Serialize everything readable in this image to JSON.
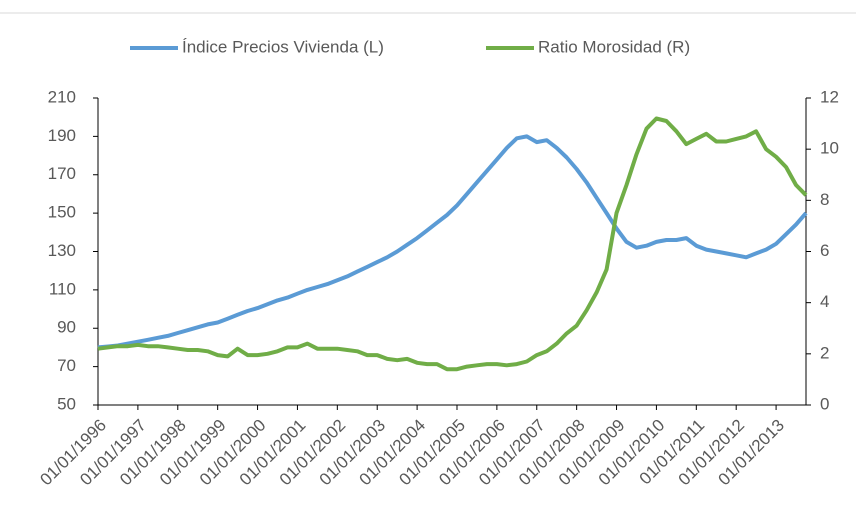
{
  "chart_data": {
    "type": "line",
    "categories": [
      "01/01/1996",
      null,
      null,
      null,
      "01/01/1997",
      null,
      null,
      null,
      "01/01/1998",
      null,
      null,
      null,
      "01/01/1999",
      null,
      null,
      null,
      "01/01/2000",
      null,
      null,
      null,
      "01/01/2001",
      null,
      null,
      null,
      "01/01/2002",
      null,
      null,
      null,
      "01/01/2003",
      null,
      null,
      null,
      "01/01/2004",
      null,
      null,
      null,
      "01/01/2005",
      null,
      null,
      null,
      "01/01/2006",
      null,
      null,
      null,
      "01/01/2007",
      null,
      null,
      null,
      "01/01/2008",
      null,
      null,
      null,
      "01/01/2009",
      null,
      null,
      null,
      "01/01/2010",
      null,
      null,
      null,
      "01/01/2011",
      null,
      null,
      null,
      "01/01/2012",
      null,
      null,
      null,
      "01/01/2013",
      null,
      null,
      null
    ],
    "series": [
      {
        "name": "Índice Precios Vivienda (L)",
        "color": "#5b9bd5",
        "axis": "y",
        "values": [
          80,
          80.5,
          81,
          82,
          83,
          84,
          85,
          86,
          87.5,
          89,
          90.5,
          92,
          93,
          95,
          97,
          99,
          100.5,
          102.5,
          104.5,
          106,
          108,
          110,
          111.5,
          113,
          115,
          117,
          119.5,
          122,
          124.5,
          127,
          130,
          133.5,
          137,
          141,
          145,
          149,
          154,
          160,
          166,
          172,
          178,
          184,
          189,
          190,
          187,
          188,
          184,
          179,
          173,
          166,
          158,
          150,
          142,
          135,
          132,
          133,
          135,
          136,
          136,
          137,
          133,
          131,
          130,
          129,
          128,
          127,
          129,
          131,
          134,
          139,
          144,
          150
        ]
      },
      {
        "name": "Ratio Morosidad (R)",
        "color": "#70ad47",
        "axis": "y2",
        "values": [
          2.2,
          2.25,
          2.3,
          2.3,
          2.35,
          2.3,
          2.3,
          2.25,
          2.2,
          2.15,
          2.15,
          2.1,
          1.95,
          1.9,
          2.2,
          1.95,
          1.95,
          2.0,
          2.1,
          2.25,
          2.25,
          2.4,
          2.2,
          2.2,
          2.2,
          2.15,
          2.1,
          1.95,
          1.95,
          1.8,
          1.75,
          1.8,
          1.65,
          1.6,
          1.6,
          1.4,
          1.4,
          1.5,
          1.55,
          1.6,
          1.6,
          1.55,
          1.6,
          1.7,
          1.95,
          2.1,
          2.4,
          2.8,
          3.1,
          3.7,
          4.4,
          5.3,
          7.5,
          8.6,
          9.8,
          10.8,
          11.2,
          11.1,
          10.7,
          10.2,
          10.4,
          10.6,
          10.3,
          10.3,
          10.4,
          10.5,
          10.7,
          10.0,
          9.7,
          9.3,
          8.6,
          8.2
        ]
      }
    ],
    "ylim": [
      50,
      210
    ],
    "yticks": [
      50,
      70,
      90,
      110,
      130,
      150,
      170,
      190,
      210
    ],
    "y2lim": [
      0,
      12
    ],
    "y2ticks": [
      0,
      2,
      4,
      6,
      8,
      10,
      12
    ],
    "legend": "top"
  }
}
